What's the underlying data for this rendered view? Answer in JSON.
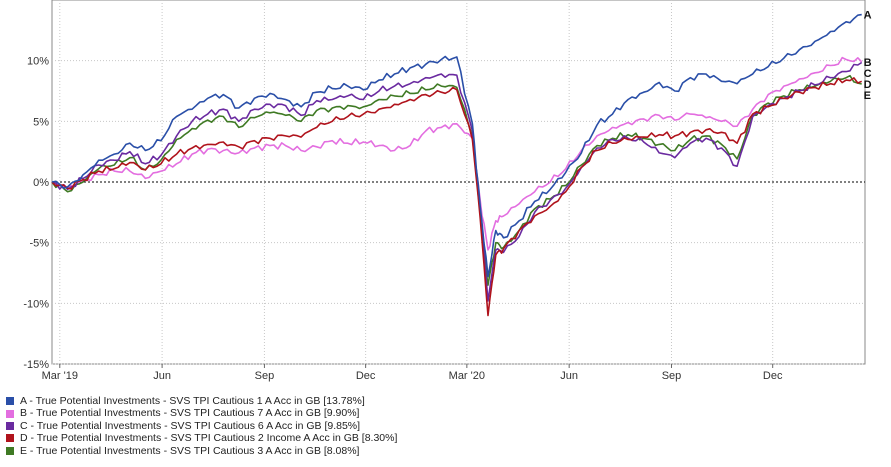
{
  "chart_data": {
    "type": "line",
    "title": "",
    "xlabel": "",
    "ylabel": "",
    "ylim": [
      -15,
      15
    ],
    "yticks": [
      {
        "value": 10,
        "label": "10%"
      },
      {
        "value": 5,
        "label": "5%"
      },
      {
        "value": 0,
        "label": "0%"
      },
      {
        "value": -5,
        "label": "-5%"
      },
      {
        "value": -10,
        "label": "-10%"
      },
      {
        "value": -15,
        "label": "-15%"
      }
    ],
    "xlim": [
      "2019-02-22",
      "2021-02-22"
    ],
    "xticks": [
      {
        "date": "2019-03-01",
        "label": "Mar '19"
      },
      {
        "date": "2019-06-01",
        "label": "Jun"
      },
      {
        "date": "2019-09-01",
        "label": "Sep"
      },
      {
        "date": "2019-12-01",
        "label": "Dec"
      },
      {
        "date": "2020-03-01",
        "label": "Mar '20"
      },
      {
        "date": "2020-06-01",
        "label": "Jun"
      },
      {
        "date": "2020-09-01",
        "label": "Sep"
      },
      {
        "date": "2020-12-01",
        "label": "Dec"
      }
    ],
    "grid": true,
    "zero_line": true,
    "legend_position": "bottom-left",
    "x": [
      "2019-02-22",
      "2019-03-08",
      "2019-03-22",
      "2019-04-05",
      "2019-04-19",
      "2019-05-03",
      "2019-05-17",
      "2019-05-31",
      "2019-06-14",
      "2019-06-28",
      "2019-07-12",
      "2019-07-26",
      "2019-08-09",
      "2019-08-23",
      "2019-09-06",
      "2019-09-20",
      "2019-10-04",
      "2019-10-18",
      "2019-11-01",
      "2019-11-15",
      "2019-11-29",
      "2019-12-13",
      "2019-12-27",
      "2020-01-10",
      "2020-01-24",
      "2020-02-07",
      "2020-02-21",
      "2020-03-06",
      "2020-03-13",
      "2020-03-20",
      "2020-03-27",
      "2020-04-03",
      "2020-04-17",
      "2020-05-01",
      "2020-05-15",
      "2020-05-29",
      "2020-06-12",
      "2020-06-26",
      "2020-07-10",
      "2020-07-24",
      "2020-08-07",
      "2020-08-21",
      "2020-09-04",
      "2020-09-18",
      "2020-10-02",
      "2020-10-16",
      "2020-10-30",
      "2020-11-13",
      "2020-11-27",
      "2020-12-11",
      "2020-12-25",
      "2021-01-08",
      "2021-01-22",
      "2021-02-05",
      "2021-02-19"
    ],
    "series": [
      {
        "name": "A - True Potential Investments - SVS TPI Cautious 1 A Acc in GB [13.78%]",
        "end_label": "A",
        "color": "#2a4fa8",
        "values": [
          0,
          -0.4,
          0.6,
          1.8,
          2.3,
          3.2,
          2.6,
          3.4,
          5.4,
          6.0,
          6.9,
          7.2,
          6.1,
          6.9,
          7.3,
          6.8,
          6.2,
          7.4,
          7.7,
          7.9,
          7.6,
          8.4,
          8.9,
          9.4,
          9.7,
          10.1,
          10.3,
          4.8,
          -2.0,
          -7.8,
          -4.0,
          -4.6,
          -3.2,
          -1.6,
          -0.6,
          0.8,
          2.4,
          4.7,
          5.6,
          6.8,
          7.4,
          8.2,
          7.5,
          8.6,
          8.9,
          8.3,
          8.1,
          8.9,
          9.5,
          10.2,
          10.9,
          11.6,
          12.4,
          13.2,
          13.8
        ]
      },
      {
        "name": "B - True Potential Investments - SVS TPI Cautious 7 A Acc in GB [9.90%]",
        "end_label": "B",
        "color": "#e36ee0",
        "values": [
          0,
          -0.4,
          0.1,
          0.6,
          0.9,
          0.9,
          0.3,
          0.9,
          1.5,
          2.3,
          2.7,
          2.6,
          2.4,
          2.8,
          3.0,
          3.0,
          2.6,
          2.9,
          3.4,
          3.2,
          3.3,
          3.0,
          2.6,
          3.0,
          4.2,
          4.5,
          4.8,
          3.6,
          -1.5,
          -5.6,
          -3.2,
          -2.8,
          -1.8,
          -0.8,
          0,
          1.1,
          2.6,
          3.8,
          4.5,
          4.9,
          5.2,
          5.5,
          5.1,
          5.6,
          5.3,
          5.0,
          4.6,
          6.0,
          7.2,
          7.9,
          8.5,
          9.0,
          9.6,
          10.1,
          9.9
        ]
      },
      {
        "name": "C - True Potential Investments - SVS TPI Cautious 6 A Acc in GB [9.85%]",
        "end_label": "C",
        "color": "#6a2aa0",
        "values": [
          0,
          -0.6,
          0.3,
          1.4,
          1.8,
          2.5,
          1.5,
          2.2,
          3.8,
          5.0,
          5.6,
          6.0,
          5.0,
          6.0,
          6.4,
          6.3,
          5.5,
          6.7,
          6.8,
          7.1,
          6.8,
          7.5,
          7.9,
          8.1,
          8.6,
          8.9,
          8.8,
          4.2,
          -2.5,
          -9.8,
          -5.6,
          -5.8,
          -4.5,
          -2.5,
          -1.5,
          -0.5,
          1.2,
          2.8,
          3.5,
          3.6,
          3.3,
          2.4,
          2.0,
          3.2,
          3.6,
          2.8,
          1.3,
          5.4,
          6.3,
          6.9,
          7.5,
          8.0,
          8.6,
          9.1,
          9.85
        ]
      },
      {
        "name": "D - True Potential Investments - SVS TPI Cautious 2 Income A Acc in GB [8.30%]",
        "end_label": "D",
        "color": "#b0131c",
        "values": [
          0,
          -0.5,
          0.2,
          0.9,
          1.1,
          1.6,
          1.0,
          1.5,
          2.3,
          2.8,
          3.1,
          3.3,
          2.9,
          3.4,
          3.6,
          3.8,
          3.7,
          4.5,
          5.0,
          5.4,
          5.6,
          6.0,
          6.4,
          6.8,
          7.2,
          7.4,
          7.6,
          3.5,
          -3.0,
          -11.0,
          -6.0,
          -5.5,
          -4.0,
          -2.8,
          -2.0,
          -0.8,
          1.2,
          2.6,
          3.2,
          3.5,
          3.7,
          3.9,
          3.8,
          4.1,
          4.3,
          4.1,
          3.2,
          5.6,
          6.2,
          6.9,
          7.4,
          7.8,
          8.1,
          8.4,
          8.3
        ]
      },
      {
        "name": "E - True Potential Investments - SVS TPI Cautious 3 A Acc in GB [8.08%]",
        "end_label": "E",
        "color": "#3f7a24",
        "values": [
          0,
          -0.8,
          0.0,
          1.1,
          1.4,
          2.0,
          1.0,
          1.8,
          3.5,
          4.4,
          5.1,
          5.4,
          4.5,
          5.3,
          5.7,
          5.5,
          5.0,
          5.9,
          6.1,
          6.3,
          6.2,
          6.8,
          7.1,
          7.3,
          7.6,
          7.9,
          7.8,
          3.8,
          -2.4,
          -8.5,
          -5.0,
          -5.4,
          -4.0,
          -2.2,
          -1.4,
          -0.3,
          1.4,
          3.0,
          3.6,
          3.9,
          3.6,
          3.1,
          2.6,
          3.5,
          3.8,
          3.1,
          1.9,
          5.5,
          6.5,
          7.1,
          7.6,
          7.9,
          8.3,
          8.6,
          8.08
        ]
      }
    ]
  }
}
